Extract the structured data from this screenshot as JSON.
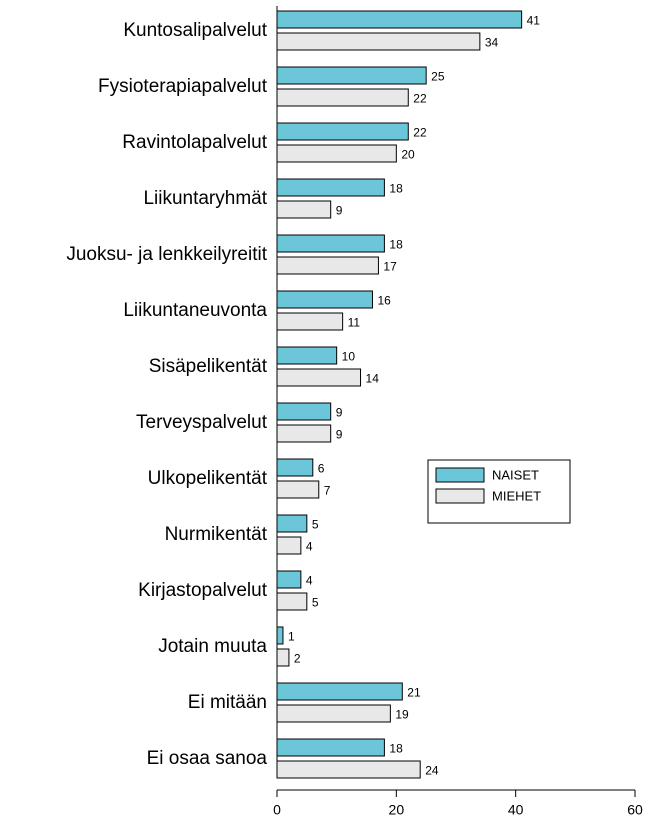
{
  "chart_data": {
    "type": "barh",
    "categories": [
      "Kuntosalipalvelut",
      "Fysioterapiapalvelut",
      "Ravintolapalvelut",
      "Liikuntaryhmät",
      "Juoksu- ja lenkkeilyreitit",
      "Liikuntaneuvonta",
      "Sisäpelikentät",
      "Terveyspalvelut",
      "Ulkopelikentät",
      "Nurmikentät",
      "Kirjastopalvelut",
      "Jotain muuta",
      "Ei mitään",
      "Ei osaa sanoa"
    ],
    "series": [
      {
        "name": "NAISET",
        "color": "#6cc6da",
        "values": [
          41,
          25,
          22,
          18,
          18,
          16,
          10,
          9,
          6,
          5,
          4,
          1,
          21,
          18
        ]
      },
      {
        "name": "MIEHET",
        "color": "#e8e8e8",
        "values": [
          34,
          22,
          20,
          9,
          17,
          11,
          14,
          9,
          7,
          4,
          5,
          2,
          19,
          24
        ]
      }
    ],
    "xlim": [
      0,
      60
    ],
    "xticks": [
      0,
      20,
      40,
      60
    ],
    "legend": "center right"
  }
}
